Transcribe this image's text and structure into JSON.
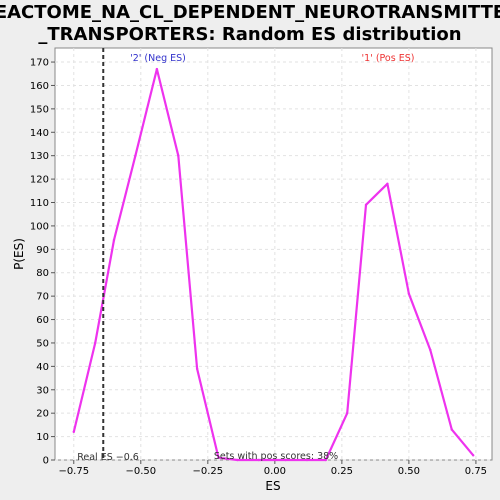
{
  "chart_data": {
    "type": "line",
    "title_line1": "REACTOME_NA_CL_DEPENDENT_NEUROTRANSMITTER",
    "title_line2": "_TRANSPORTERS: Random ES distribution",
    "xlabel": "ES",
    "ylabel": "P(ES)",
    "xlim": [
      -0.82,
      0.81
    ],
    "ylim": [
      0,
      176
    ],
    "x_ticks": [
      -0.75,
      -0.5,
      -0.25,
      0.0,
      0.25,
      0.5,
      0.75
    ],
    "x_tick_labels": [
      "−0.75",
      "−0.50",
      "−0.25",
      "0.00",
      "0.25",
      "0.50",
      "0.75"
    ],
    "y_ticks": [
      0,
      10,
      20,
      30,
      40,
      50,
      60,
      70,
      80,
      90,
      100,
      110,
      120,
      130,
      140,
      150,
      160,
      170
    ],
    "grid": true,
    "series": [
      {
        "color": "#ee33ee",
        "x": [
          -0.75,
          -0.67,
          -0.6,
          -0.52,
          -0.44,
          -0.36,
          -0.29,
          -0.21,
          -0.14,
          -0.06,
          0.04,
          0.12,
          0.19,
          0.27,
          0.34,
          0.42,
          0.5,
          0.58,
          0.66,
          0.74
        ],
        "y": [
          12,
          50,
          94,
          130,
          167,
          130,
          39,
          1,
          0,
          0,
          0,
          0,
          0,
          20,
          109,
          118,
          71,
          47,
          13,
          2
        ]
      }
    ],
    "real_es": {
      "value": -0.64,
      "label": "Real ES −0.6",
      "color": "#333333"
    },
    "annotations": {
      "neg_label": "'2' (Neg ES)",
      "neg_color": "#3333cc",
      "pos_label": "'1' (Pos ES)",
      "pos_color": "#ee3333",
      "sets_label": "Sets with pos scores: 38%"
    }
  }
}
